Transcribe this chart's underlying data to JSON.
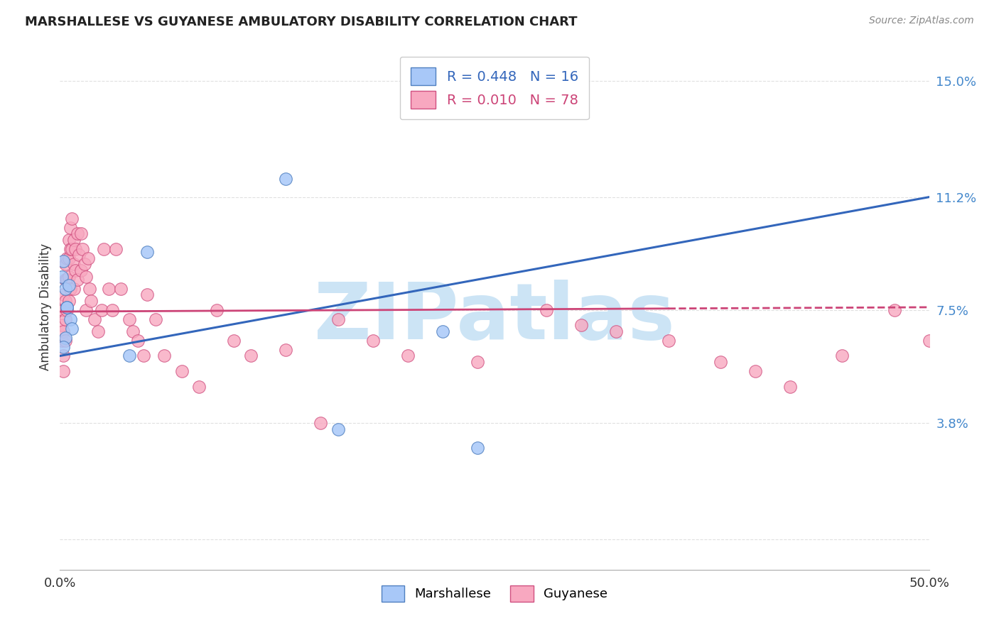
{
  "title": "MARSHALLESE VS GUYANESE AMBULATORY DISABILITY CORRELATION CHART",
  "source": "Source: ZipAtlas.com",
  "ylabel": "Ambulatory Disability",
  "yticks": [
    0.0,
    0.038,
    0.075,
    0.112,
    0.15
  ],
  "ytick_labels": [
    "",
    "3.8%",
    "7.5%",
    "11.2%",
    "15.0%"
  ],
  "xlim": [
    0.0,
    0.5
  ],
  "ylim": [
    -0.01,
    0.162
  ],
  "marshallese_x": [
    0.001,
    0.002,
    0.003,
    0.004,
    0.005,
    0.006,
    0.007,
    0.003,
    0.002,
    0.004,
    0.05,
    0.13,
    0.16,
    0.24,
    0.04,
    0.22
  ],
  "marshallese_y": [
    0.086,
    0.091,
    0.082,
    0.076,
    0.083,
    0.072,
    0.069,
    0.066,
    0.063,
    0.076,
    0.094,
    0.118,
    0.036,
    0.03,
    0.06,
    0.068
  ],
  "guyanese_x": [
    0.001,
    0.001,
    0.001,
    0.002,
    0.002,
    0.002,
    0.002,
    0.002,
    0.003,
    0.003,
    0.003,
    0.003,
    0.003,
    0.004,
    0.004,
    0.004,
    0.005,
    0.005,
    0.005,
    0.005,
    0.006,
    0.006,
    0.006,
    0.007,
    0.007,
    0.008,
    0.008,
    0.008,
    0.009,
    0.009,
    0.01,
    0.01,
    0.011,
    0.012,
    0.012,
    0.013,
    0.014,
    0.015,
    0.015,
    0.016,
    0.017,
    0.018,
    0.02,
    0.022,
    0.024,
    0.025,
    0.028,
    0.03,
    0.032,
    0.035,
    0.04,
    0.042,
    0.045,
    0.048,
    0.05,
    0.055,
    0.06,
    0.07,
    0.08,
    0.09,
    0.1,
    0.11,
    0.13,
    0.15,
    0.16,
    0.18,
    0.2,
    0.24,
    0.28,
    0.3,
    0.32,
    0.35,
    0.38,
    0.4,
    0.42,
    0.45,
    0.48,
    0.5
  ],
  "guyanese_y": [
    0.075,
    0.07,
    0.065,
    0.08,
    0.075,
    0.068,
    0.06,
    0.055,
    0.09,
    0.085,
    0.078,
    0.072,
    0.065,
    0.092,
    0.085,
    0.075,
    0.098,
    0.092,
    0.086,
    0.078,
    0.102,
    0.095,
    0.082,
    0.105,
    0.095,
    0.098,
    0.09,
    0.082,
    0.095,
    0.088,
    0.1,
    0.085,
    0.093,
    0.1,
    0.088,
    0.095,
    0.09,
    0.086,
    0.075,
    0.092,
    0.082,
    0.078,
    0.072,
    0.068,
    0.075,
    0.095,
    0.082,
    0.075,
    0.095,
    0.082,
    0.072,
    0.068,
    0.065,
    0.06,
    0.08,
    0.072,
    0.06,
    0.055,
    0.05,
    0.075,
    0.065,
    0.06,
    0.062,
    0.038,
    0.072,
    0.065,
    0.06,
    0.058,
    0.075,
    0.07,
    0.068,
    0.065,
    0.058,
    0.055,
    0.05,
    0.06,
    0.075,
    0.065
  ],
  "marshallese_color": "#a8c8f8",
  "marshallese_edge": "#5080c0",
  "guyanese_color": "#f8a8c0",
  "guyanese_edge": "#d05080",
  "trend_marshallese_color": "#3366bb",
  "trend_guyanese_color": "#cc4477",
  "trend_m_x0": 0.0,
  "trend_m_y0": 0.06,
  "trend_m_x1": 0.5,
  "trend_m_y1": 0.112,
  "trend_g_x0": 0.0,
  "trend_g_y0": 0.0745,
  "trend_g_x1": 0.35,
  "trend_g_y1": 0.0755,
  "trend_g_dash_x0": 0.35,
  "trend_g_dash_x1": 0.5,
  "watermark_color": "#cce4f5",
  "background_color": "#ffffff",
  "grid_color": "#e0e0e0"
}
